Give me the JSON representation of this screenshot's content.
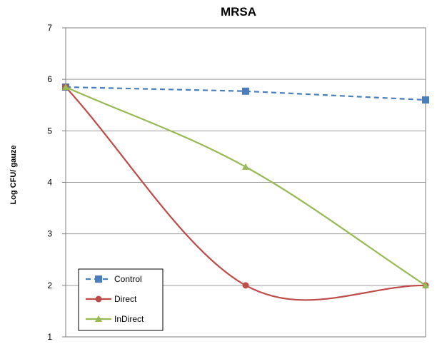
{
  "chart_data": {
    "type": "line",
    "title": "MRSA",
    "xlabel": "",
    "ylabel": "Log CFU/ gauze",
    "ylim": [
      1,
      7
    ],
    "yticks": [
      "1",
      "2",
      "3",
      "4",
      "5",
      "6",
      "7"
    ],
    "x": [
      0,
      1,
      2
    ],
    "grid": "horizontal",
    "legend_position": "bottom-left",
    "series": [
      {
        "name": "Control",
        "values": [
          5.85,
          5.77,
          5.6
        ],
        "color": "#4a7ebb",
        "marker": "square",
        "line": "dashed",
        "smooth": false
      },
      {
        "name": "Direct",
        "values": [
          5.85,
          2.0,
          2.0
        ],
        "color": "#be4b48",
        "marker": "circle",
        "line": "solid",
        "smooth": true
      },
      {
        "name": "InDirect",
        "values": [
          5.85,
          4.3,
          2.0
        ],
        "color": "#98b954",
        "marker": "triangle",
        "line": "solid",
        "smooth": true
      }
    ]
  }
}
